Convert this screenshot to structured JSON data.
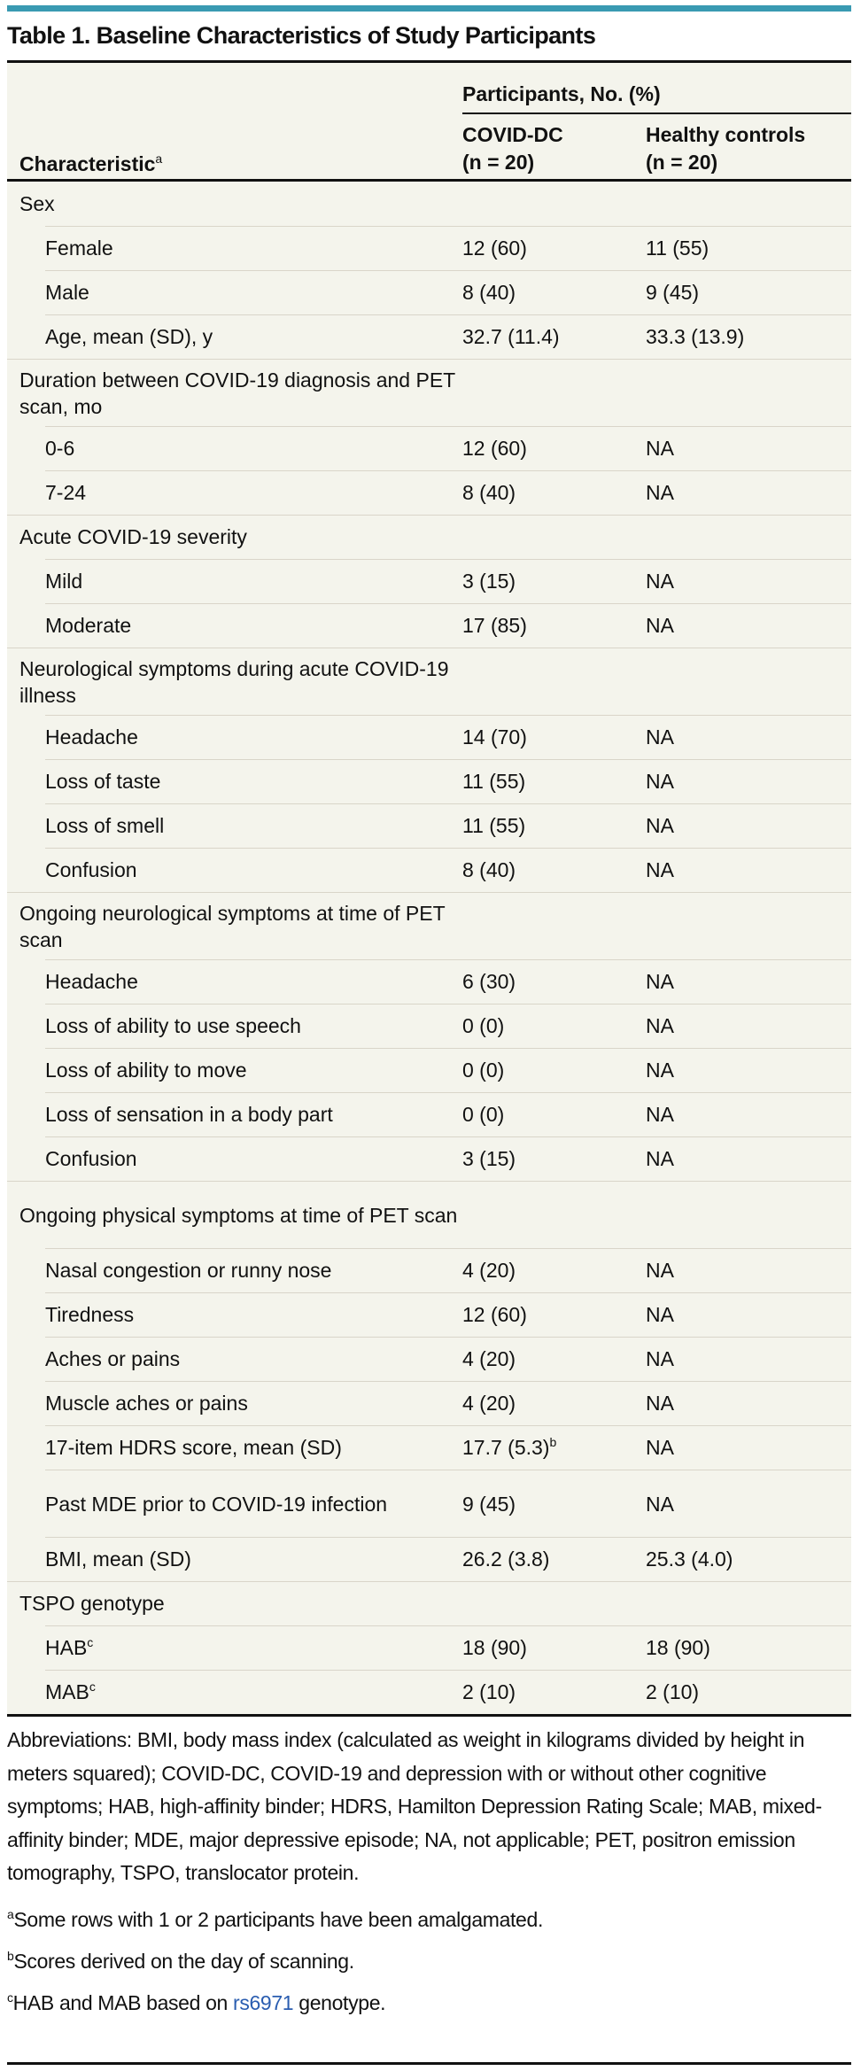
{
  "title": "Table 1. Baseline Characteristics of Study Participants",
  "header": {
    "spanner": "Participants, No. (%)",
    "characteristic": "Characteristic",
    "characteristic_sup": "a",
    "col_covid_line1": "COVID-DC",
    "col_covid_line2": "(n = 20)",
    "col_healthy_line1": "Healthy controls",
    "col_healthy_line2": "(n = 20)"
  },
  "groups": [
    {
      "label": "Sex",
      "rows": [
        {
          "label": "Female",
          "covid": "12 (60)",
          "healthy": "11 (55)"
        },
        {
          "label": "Male",
          "covid": "8 (40)",
          "healthy": "9 (45)"
        },
        {
          "label": "Age, mean (SD), y",
          "covid": "32.7 (11.4)",
          "healthy": "33.3 (13.9)"
        }
      ]
    },
    {
      "label": "Duration between COVID-19 diagnosis and PET scan, mo",
      "double": true,
      "rows": [
        {
          "label": "0-6",
          "covid": "12 (60)",
          "healthy": "NA"
        },
        {
          "label": "7-24",
          "covid": "8 (40)",
          "healthy": "NA"
        }
      ]
    },
    {
      "label": "Acute COVID-19 severity",
      "rows": [
        {
          "label": "Mild",
          "covid": "3 (15)",
          "healthy": "NA"
        },
        {
          "label": "Moderate",
          "covid": "17 (85)",
          "healthy": "NA"
        }
      ]
    },
    {
      "label": "Neurological symptoms during acute COVID-19 illness",
      "double": true,
      "rows": [
        {
          "label": "Headache",
          "covid": "14 (70)",
          "healthy": "NA"
        },
        {
          "label": "Loss of taste",
          "covid": "11 (55)",
          "healthy": "NA"
        },
        {
          "label": "Loss of smell",
          "covid": "11 (55)",
          "healthy": "NA"
        },
        {
          "label": "Confusion",
          "covid": "8 (40)",
          "healthy": "NA"
        }
      ]
    },
    {
      "label": "Ongoing neurological symptoms at time of PET scan",
      "double": true,
      "rows": [
        {
          "label": "Headache",
          "covid": "6 (30)",
          "healthy": "NA"
        },
        {
          "label": "Loss of ability to use speech",
          "covid": "0 (0)",
          "healthy": "NA"
        },
        {
          "label": "Loss of ability to move",
          "covid": "0 (0)",
          "healthy": "NA"
        },
        {
          "label": "Loss of sensation in a body part",
          "covid": "0 (0)",
          "healthy": "NA"
        },
        {
          "label": "Confusion",
          "covid": "3 (15)",
          "healthy": "NA"
        }
      ]
    },
    {
      "label": "Ongoing physical symptoms at time of PET scan",
      "double": true,
      "rows": [
        {
          "label": "Nasal congestion or runny nose",
          "covid": "4 (20)",
          "healthy": "NA"
        },
        {
          "label": "Tiredness",
          "covid": "12 (60)",
          "healthy": "NA"
        },
        {
          "label": "Aches or pains",
          "covid": "4 (20)",
          "healthy": "NA"
        },
        {
          "label": "Muscle aches or pains",
          "covid": "4 (20)",
          "healthy": "NA"
        },
        {
          "label": "17-item HDRS score, mean (SD)",
          "covid": "17.7 (5.3)",
          "covid_sup": "b",
          "healthy": "NA"
        },
        {
          "label": "Past MDE prior to COVID-19 infection",
          "double": true,
          "covid": "9 (45)",
          "healthy": "NA"
        },
        {
          "label": "BMI, mean (SD)",
          "covid": "26.2 (3.8)",
          "healthy": "25.3 (4.0)"
        }
      ]
    },
    {
      "label": "TSPO genotype",
      "rows": [
        {
          "label": "HAB",
          "sup": "c",
          "covid": "18 (90)",
          "healthy": "18 (90)"
        },
        {
          "label": "MAB",
          "sup": "c",
          "covid": "2 (10)",
          "healthy": "2 (10)"
        }
      ]
    }
  ],
  "footer": {
    "abbreviations": "Abbreviations: BMI, body mass index (calculated as weight in kilograms divided by height in meters squared); COVID-DC, COVID-19 and depression with or without other cognitive symptoms; HAB, high-affinity binder; HDRS, Hamilton Depression Rating Scale; MAB, mixed-affinity binder; MDE, major depressive episode; NA, not applicable; PET, positron emission tomography, TSPO, translocator protein.",
    "notes": [
      {
        "mark": "a",
        "text": "Some rows with 1 or 2 participants have been amalgamated."
      },
      {
        "mark": "b",
        "text": "Scores derived on the day of scanning."
      },
      {
        "mark": "c",
        "text_before": "HAB and MAB based on ",
        "link": "rs6971",
        "text_after": " genotype."
      }
    ],
    "link_color": "#2a5db0"
  },
  "colors": {
    "accent": "#3a9ab2",
    "table_bg": "#f4f4ec"
  }
}
